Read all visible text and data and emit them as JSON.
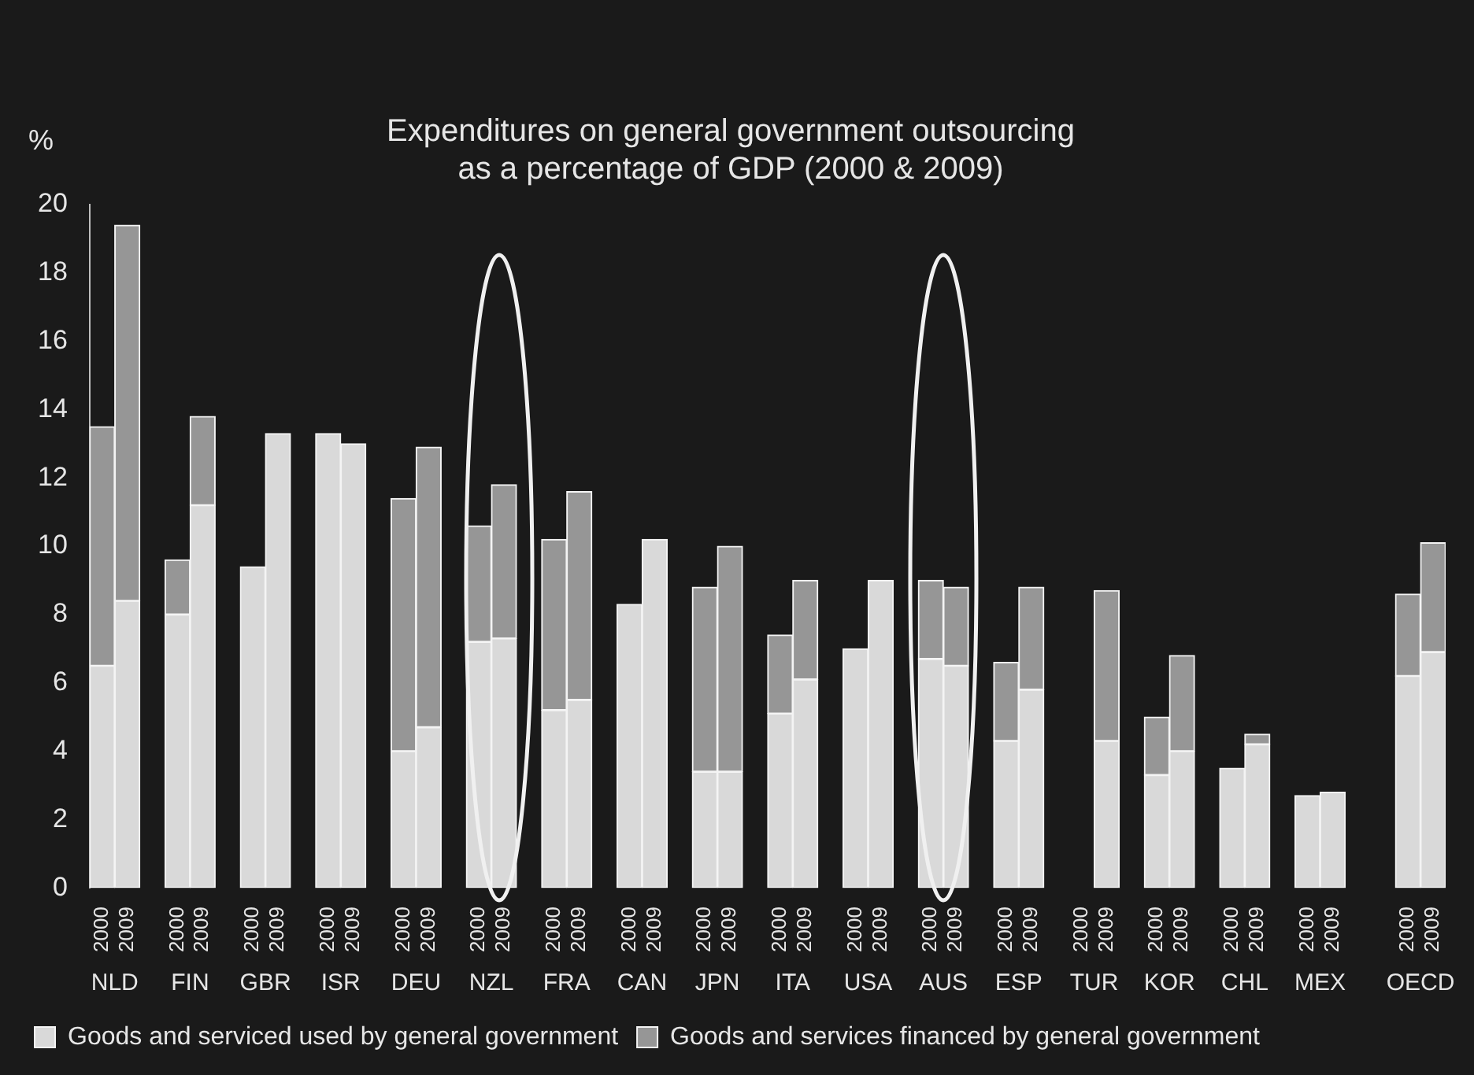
{
  "chart_data": {
    "type": "bar",
    "stacked": true,
    "title": "Expenditures on general government outsourcing\nas a percentage of GDP (2000 & 2009)",
    "ylabel": "%",
    "categories": [
      "2000",
      "2009",
      null,
      "2000",
      "2009",
      null,
      "2000",
      "2009",
      null,
      "2000",
      "2009",
      null,
      "2000",
      "2009",
      null,
      "2000",
      "2009",
      null,
      "2000",
      "2009",
      null,
      "2000",
      "2009",
      null,
      "2000",
      "2009",
      null,
      "2000",
      "2009",
      null,
      "2000",
      "2009",
      null,
      "2000",
      "2009",
      null,
      "2000",
      "2009",
      null,
      "2000",
      "2009",
      null,
      "2000",
      "2009",
      null,
      "2000",
      "2009",
      null,
      "2000",
      "2009",
      null,
      null,
      "2000",
      "2009"
    ],
    "series": [
      {
        "name": "Goods and serviced used by general government",
        "color": "#d9d9d9",
        "values": [
          6.5,
          8.4,
          null,
          8.0,
          11.2,
          null,
          9.4,
          13.3,
          null,
          13.3,
          13.0,
          null,
          4.0,
          4.7,
          null,
          7.2,
          7.3,
          null,
          5.2,
          5.5,
          null,
          8.3,
          10.2,
          null,
          3.4,
          3.4,
          null,
          5.1,
          6.1,
          null,
          7.0,
          9.0,
          null,
          6.7,
          6.5,
          null,
          4.3,
          5.8,
          null,
          null,
          4.3,
          null,
          3.3,
          4.0,
          null,
          3.5,
          4.2,
          null,
          2.7,
          2.8,
          null,
          null,
          6.2,
          6.9
        ]
      },
      {
        "name": "Goods and services financed by general government",
        "color": "#969696",
        "values": [
          7.0,
          11.0,
          null,
          1.6,
          2.6,
          null,
          null,
          null,
          null,
          null,
          null,
          null,
          7.4,
          8.2,
          null,
          3.4,
          4.5,
          null,
          5.0,
          6.1,
          null,
          null,
          null,
          null,
          5.4,
          6.6,
          null,
          2.3,
          2.9,
          null,
          null,
          null,
          null,
          2.3,
          2.3,
          null,
          2.3,
          3.0,
          null,
          null,
          4.4,
          null,
          1.7,
          2.8,
          null,
          null,
          0.3,
          null,
          null,
          null,
          null,
          null,
          2.4,
          3.2
        ]
      }
    ],
    "annotations": [
      "NLD",
      "FIN",
      "GBR",
      "ISR",
      "DEU",
      "NZL",
      "FRA",
      "CAN",
      "JPN",
      "ITA",
      "USA",
      "AUS",
      "ESP",
      "TUR",
      "KOR",
      "CHL",
      "MEX",
      "OECD"
    ],
    "ylim": [
      0,
      20
    ],
    "yticks": [
      0,
      2,
      4,
      6,
      8,
      10,
      12,
      14,
      16,
      18,
      20
    ],
    "grid": false,
    "legend": "bottom"
  }
}
